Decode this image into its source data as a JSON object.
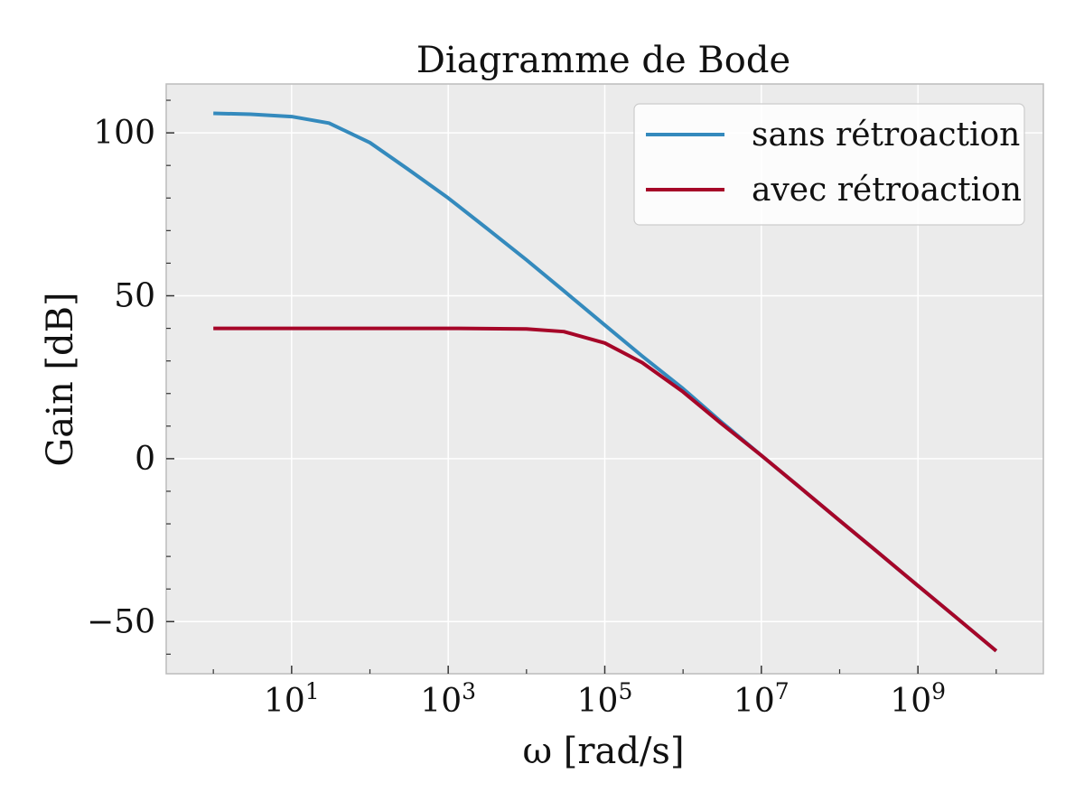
{
  "chart_data": {
    "type": "line",
    "title": "Diagramme de Bode",
    "xlabel": "ω [rad/s]",
    "ylabel": "Gain [dB]",
    "xscale": "log",
    "xlim": [
      0.25,
      40000000000
    ],
    "ylim": [
      -66,
      115
    ],
    "x_ticks": [
      {
        "base": "10",
        "exp": "1",
        "value": 10
      },
      {
        "base": "10",
        "exp": "3",
        "value": 1000
      },
      {
        "base": "10",
        "exp": "5",
        "value": 100000
      },
      {
        "base": "10",
        "exp": "7",
        "value": 10000000
      },
      {
        "base": "10",
        "exp": "9",
        "value": 1000000000
      }
    ],
    "y_ticks": [
      {
        "label": "100",
        "value": 100
      },
      {
        "label": "50",
        "value": 50
      },
      {
        "label": "0",
        "value": 0
      },
      {
        "label": "−50",
        "value": -50
      }
    ],
    "grid": true,
    "legend_position": "top-right",
    "background_color": "#ebebeb",
    "series": [
      {
        "name": "sans rétroaction",
        "color": "#348abd",
        "x": [
          1,
          3,
          10,
          30,
          100,
          300,
          1000,
          3000,
          10000,
          30000,
          100000,
          300000,
          1000000,
          3000000,
          10000000,
          30000000,
          100000000,
          300000000,
          1000000000,
          3000000000,
          10000000000
        ],
        "y": [
          106,
          105.7,
          105,
          103,
          97,
          89,
          80,
          71,
          61,
          51.5,
          41,
          31.5,
          21.5,
          11.5,
          1,
          -8.5,
          -19,
          -28.5,
          -39,
          -48.5,
          -59
        ]
      },
      {
        "name": "avec rétroaction",
        "color": "#a60628",
        "x": [
          1,
          10,
          100,
          1000,
          10000,
          30000,
          100000,
          300000,
          1000000,
          3000000,
          10000000,
          30000000,
          100000000,
          300000000,
          1000000000,
          3000000000,
          10000000000
        ],
        "y": [
          40,
          40,
          40,
          40,
          39.8,
          39,
          35.5,
          29.5,
          20.5,
          11,
          1,
          -8.5,
          -19,
          -28.5,
          -39,
          -48.5,
          -59
        ]
      }
    ]
  }
}
